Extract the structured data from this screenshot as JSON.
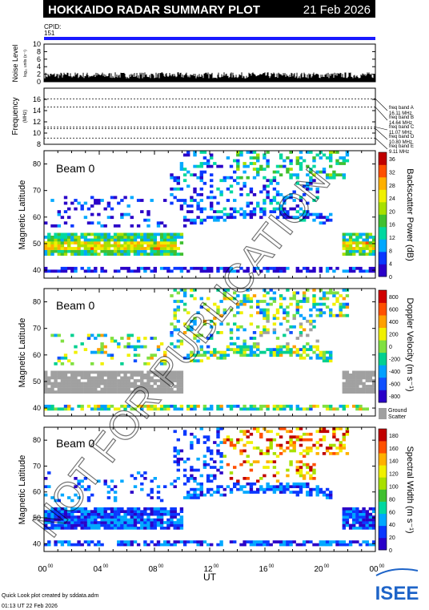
{
  "header": {
    "title": "HOKKAIDO RADAR SUMMARY PLOT",
    "date": "21 Feb 2026",
    "cpid_label": "CPID:",
    "cpid_value": "151"
  },
  "colors": {
    "header_bg": "#000000",
    "header_text": "#ffffff",
    "cpid_bar": "#1a1aff",
    "ground_scatter": "#a0a0a0",
    "watermark": "#000000"
  },
  "watermark": "NOT FOR PUBLICATION",
  "footer": {
    "credit": "Quick Look plot created by sddata.adm",
    "created": "01:13 UT 22 Feb 2026",
    "logo_text": "ISEE"
  },
  "chart_data": [
    {
      "type": "area",
      "ylabel": "Noise Level",
      "ylabel_sub": "log₁₀ units (s⁻¹)",
      "ylim": [
        0,
        10
      ],
      "yticks": [
        "0",
        "2",
        "4",
        "6",
        "8",
        "10"
      ],
      "typical_level": 1.8
    },
    {
      "type": "line",
      "ylabel": "Frequency",
      "ylabel_sub": "(MHz)",
      "ylim": [
        8,
        18
      ],
      "yticks": [
        "8",
        "10",
        "12",
        "14",
        "16"
      ],
      "series_label": "freq band",
      "bands": [
        {
          "name": "freq band A",
          "value_label": "16.11 MHz",
          "mhz": 16.11
        },
        {
          "name": "freq band B",
          "value_label": "14.64 MHz",
          "mhz": 14.64
        },
        {
          "name": "freq band C",
          "value_label": "11.07 MHz",
          "mhz": 11.07
        },
        {
          "name": "freq band D",
          "value_label": "10.80 MHz",
          "mhz": 10.8
        },
        {
          "name": "freq band E",
          "value_label": "9.11 MHz",
          "mhz": 9.11
        }
      ]
    },
    {
      "type": "heatmap",
      "beam_label": "Beam  0",
      "ylabel": "Magnetic Latitude",
      "ylim": [
        37,
        85
      ],
      "yticks": [
        "40",
        "50",
        "60",
        "70",
        "80"
      ],
      "colorbar_label": "Backscatter Power (dB)",
      "colorbar_ticks": [
        "0",
        "4",
        "8",
        "12",
        "16",
        "20",
        "24",
        "28",
        "32",
        "36"
      ],
      "colorbar_range": [
        0,
        38
      ],
      "colormap": [
        "#2a00c8",
        "#0a38ff",
        "#00a8ff",
        "#00d8a0",
        "#40c030",
        "#a8e000",
        "#f0f000",
        "#ffb000",
        "#ff5000",
        "#c00000"
      ]
    },
    {
      "type": "heatmap",
      "beam_label": "Beam  0",
      "ylabel": "Magnetic Latitude",
      "ylim": [
        37,
        85
      ],
      "yticks": [
        "40",
        "50",
        "60",
        "70",
        "80"
      ],
      "colorbar_label": "Doppler Velocity (m s⁻¹)",
      "colorbar_ticks": [
        "800",
        "600",
        "400",
        "200",
        "0",
        "-200",
        "-400",
        "-600",
        "-800"
      ],
      "colorbar_range": [
        -900,
        900
      ],
      "colormap": [
        "#2a00c8",
        "#1050ff",
        "#00a0ff",
        "#00d090",
        "#80e040",
        "#f0f000",
        "#ffa000",
        "#ff5000",
        "#d00000"
      ],
      "ground_scatter_label": [
        "Ground",
        "Scatter"
      ]
    },
    {
      "type": "heatmap",
      "beam_label": "Beam  0",
      "ylabel": "Magnetic Latitude",
      "ylim": [
        37,
        85
      ],
      "yticks": [
        "40",
        "50",
        "60",
        "70",
        "80"
      ],
      "colorbar_label": "Spectral Width (m s⁻¹)",
      "colorbar_ticks": [
        "0",
        "20",
        "40",
        "60",
        "80",
        "100",
        "120",
        "140",
        "160",
        "180"
      ],
      "colorbar_range": [
        0,
        190
      ],
      "colormap": [
        "#2a00c8",
        "#0a38ff",
        "#00a8ff",
        "#00d8a0",
        "#40c030",
        "#a8e000",
        "#f0f000",
        "#ffb000",
        "#ff5000",
        "#c00000"
      ]
    }
  ],
  "time_axis": {
    "xlabel": "UT",
    "xlim": [
      0,
      24
    ],
    "ticks": [
      {
        "hour": "00",
        "sup": "00"
      },
      {
        "hour": "04",
        "sup": "00"
      },
      {
        "hour": "08",
        "sup": "00"
      },
      {
        "hour": "12",
        "sup": "00"
      },
      {
        "hour": "16",
        "sup": "00"
      },
      {
        "hour": "20",
        "sup": "00"
      },
      {
        "hour": "00",
        "sup": "00"
      }
    ]
  }
}
